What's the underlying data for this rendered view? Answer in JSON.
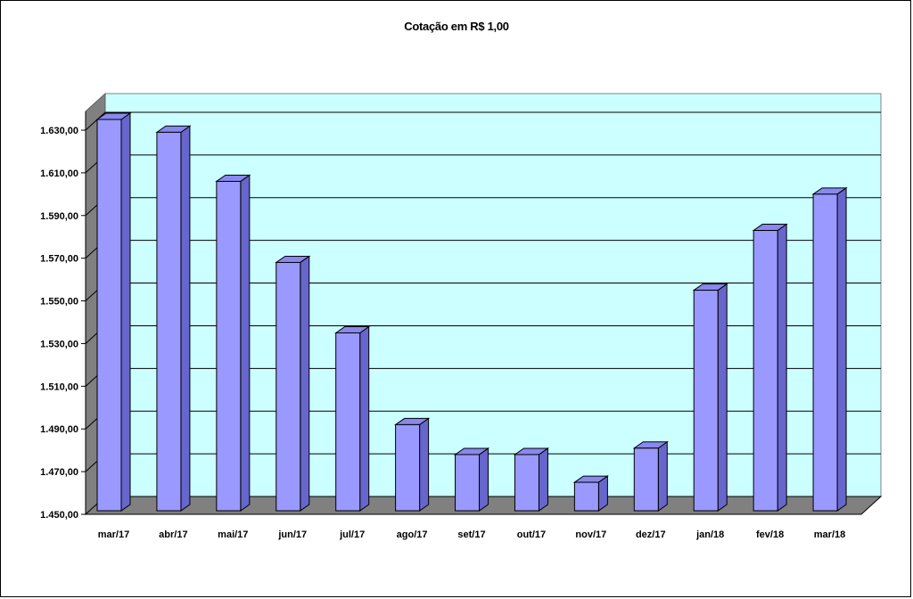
{
  "chart_data": {
    "type": "bar",
    "title": "Cotação em R$ 1,00",
    "categories": [
      "mar/17",
      "abr/17",
      "mai/17",
      "jun/17",
      "jul/17",
      "ago/17",
      "set/17",
      "out/17",
      "nov/17",
      "dez/17",
      "jan/18",
      "fev/18",
      "mar/18"
    ],
    "values": [
      1635,
      1629,
      1606,
      1568,
      1535,
      1492,
      1478,
      1478,
      1465,
      1481,
      1555,
      1583,
      1600
    ],
    "ylim": [
      1450,
      1630
    ],
    "yticks": [
      1450,
      1470,
      1490,
      1510,
      1530,
      1550,
      1570,
      1590,
      1610,
      1630
    ],
    "ytick_labels": [
      "1.450,00",
      "1.470,00",
      "1.490,00",
      "1.510,00",
      "1.530,00",
      "1.550,00",
      "1.570,00",
      "1.590,00",
      "1.610,00",
      "1.630,00"
    ],
    "xlabel": "",
    "ylabel": "",
    "grid": true,
    "legend": "none",
    "style": "3d-column",
    "colors": {
      "bar_front": "#9999ff",
      "bar_side": "#6666cc",
      "bar_top": "#8888ee",
      "plot_back": "#ccffff",
      "plot_side_wall": "#808080",
      "plot_floor": "#808080",
      "grid": "#000000"
    }
  }
}
